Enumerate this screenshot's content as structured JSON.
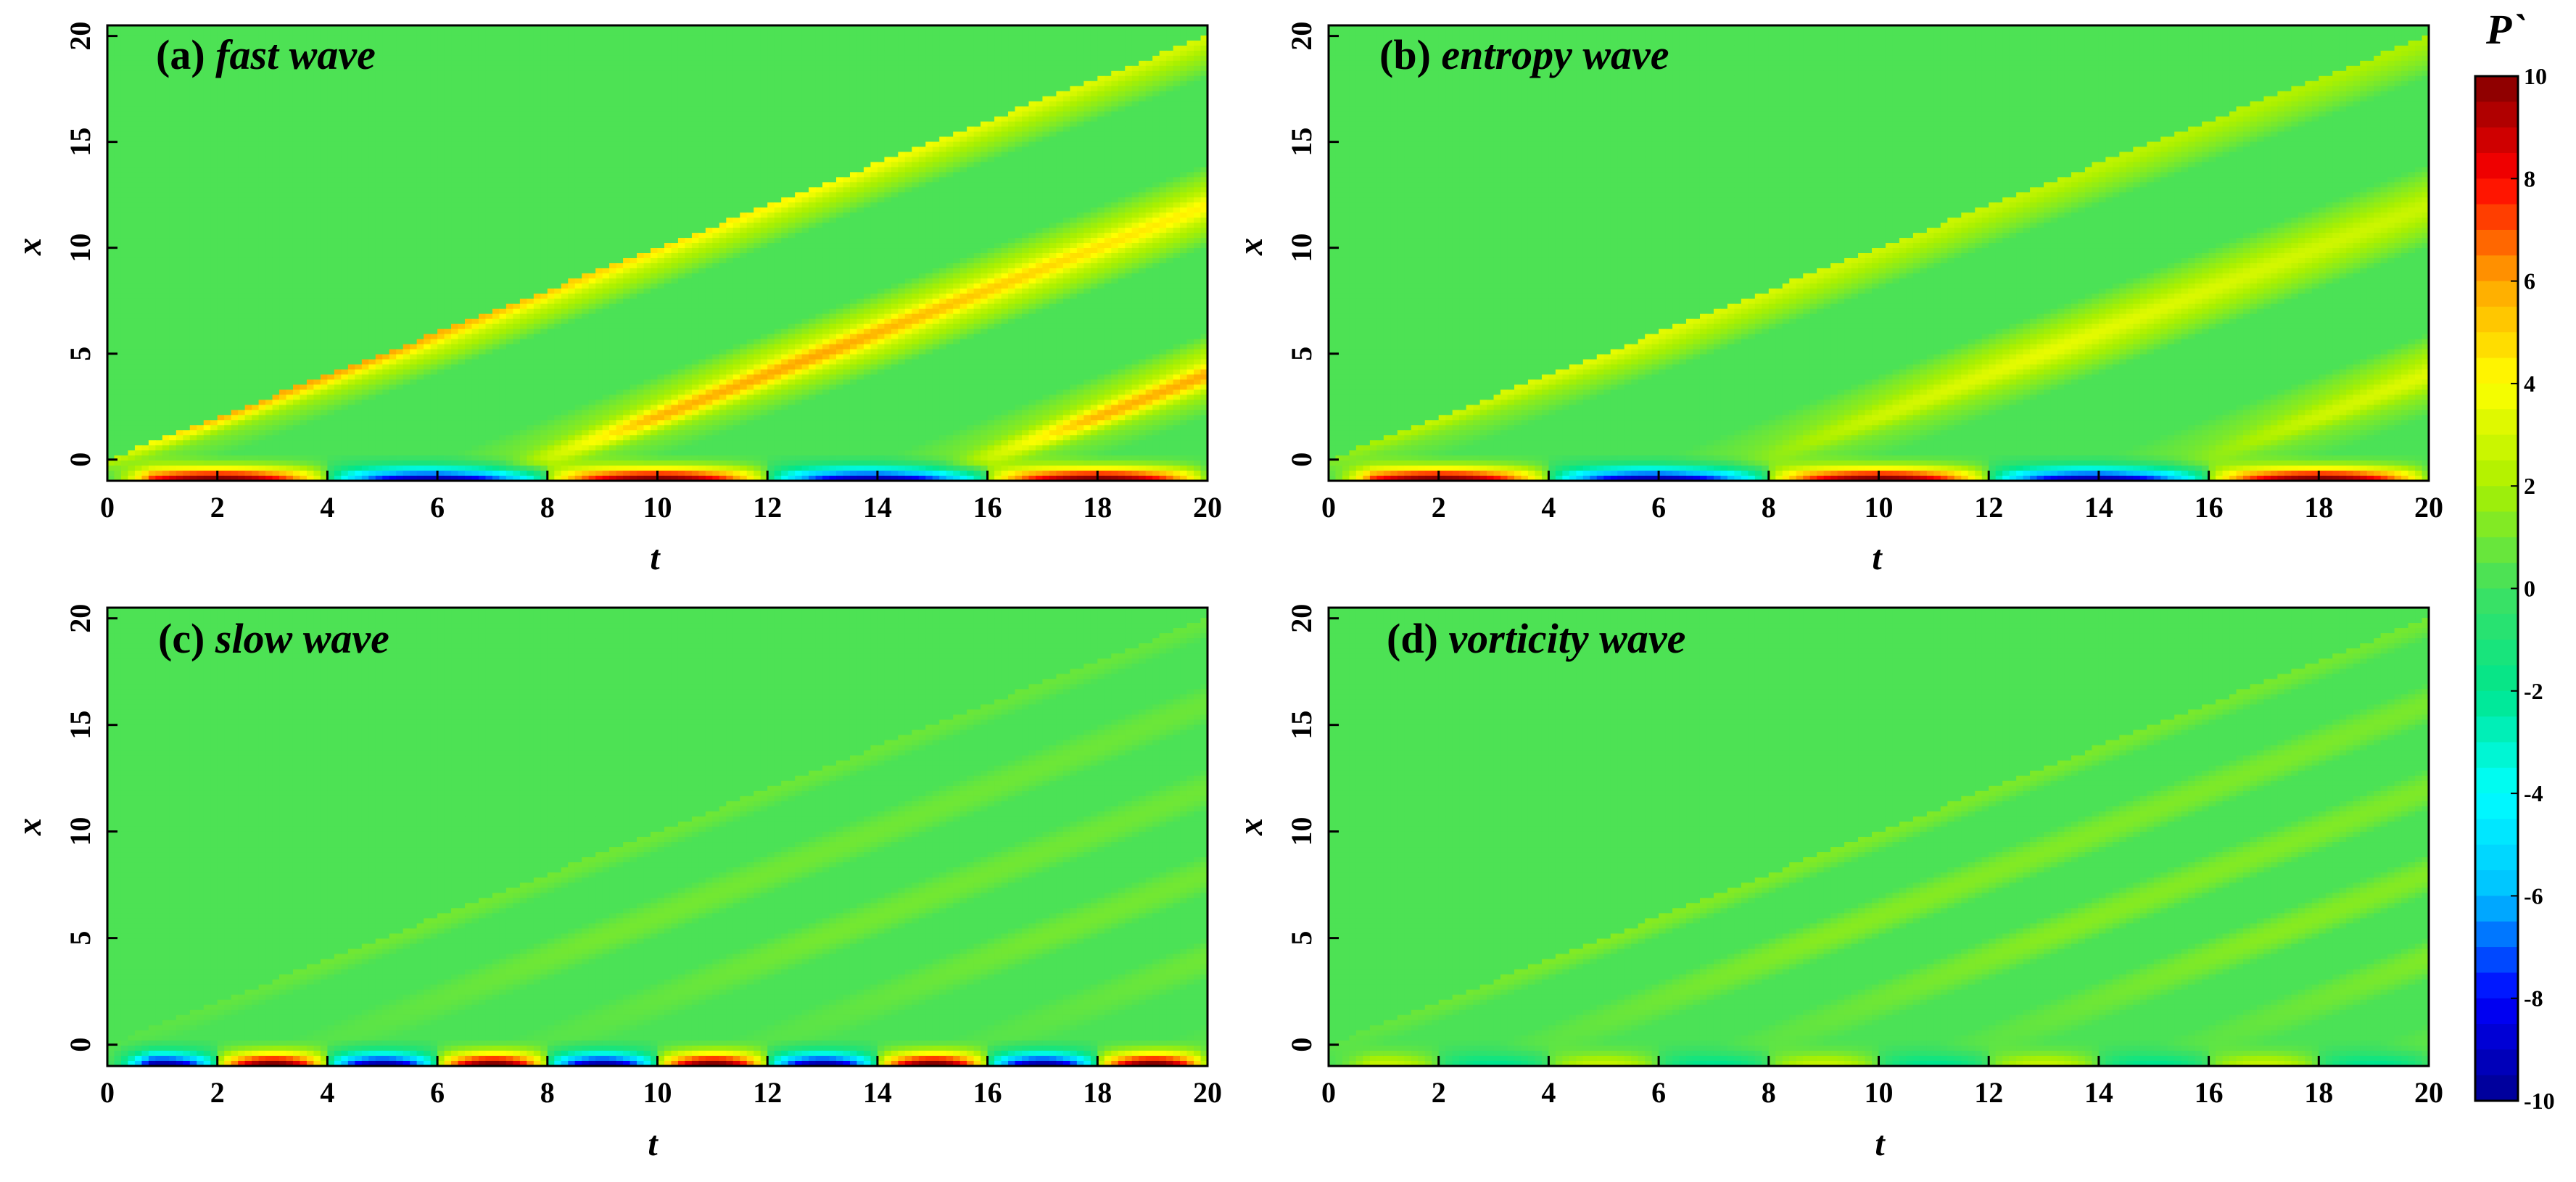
{
  "chart_data": [
    {
      "type": "heatmap",
      "id": "a",
      "label_prefix": "(a)",
      "title": "fast wave",
      "xlabel": "t",
      "ylabel": "x",
      "xlim": [
        0,
        20
      ],
      "ylim": [
        -1,
        20.5
      ],
      "xticks": [
        "0",
        "2",
        "4",
        "6",
        "8",
        "10",
        "12",
        "14",
        "16",
        "18",
        "20"
      ],
      "yticks": [
        "0",
        "5",
        "10",
        "15",
        "20"
      ],
      "boundary_amplitude": 10,
      "boundary_phase": 1,
      "boundary_period": 8,
      "wave_speed": 1.0,
      "band_amplitude": 3.2,
      "band_growth": 0.9,
      "crest_intensity": 4.5
    },
    {
      "type": "heatmap",
      "id": "b",
      "label_prefix": "(b)",
      "title": "entropy wave",
      "xlabel": "t",
      "ylabel": "x",
      "xlim": [
        0,
        20
      ],
      "ylim": [
        -1,
        20.5
      ],
      "xticks": [
        "0",
        "2",
        "4",
        "6",
        "8",
        "10",
        "12",
        "14",
        "16",
        "18",
        "20"
      ],
      "yticks": [
        "0",
        "5",
        "10",
        "15",
        "20"
      ],
      "boundary_amplitude": 10,
      "boundary_phase": 1,
      "boundary_period": 8,
      "wave_speed": 1.0,
      "band_amplitude": 2.6,
      "band_growth": 0.9,
      "crest_intensity": 1.5
    },
    {
      "type": "heatmap",
      "id": "c",
      "label_prefix": "(c)",
      "title": "slow wave",
      "xlabel": "t",
      "ylabel": "x",
      "xlim": [
        0,
        20
      ],
      "ylim": [
        -1,
        20.5
      ],
      "xticks": [
        "0",
        "2",
        "4",
        "6",
        "8",
        "10",
        "12",
        "14",
        "16",
        "18",
        "20"
      ],
      "yticks": [
        "0",
        "5",
        "10",
        "15",
        "20"
      ],
      "boundary_amplitude": 10,
      "boundary_phase": -1,
      "boundary_period": 4,
      "wave_speed": 1.0,
      "band_amplitude": 0.9,
      "band_growth": 0.9,
      "crest_intensity": 0.0
    },
    {
      "type": "heatmap",
      "id": "d",
      "label_prefix": "(d)",
      "title": "vorticity wave",
      "xlabel": "t",
      "ylabel": "x",
      "xlim": [
        0,
        20
      ],
      "ylim": [
        -1,
        20.5
      ],
      "xticks": [
        "0",
        "2",
        "4",
        "6",
        "8",
        "10",
        "12",
        "14",
        "16",
        "18",
        "20"
      ],
      "yticks": [
        "0",
        "5",
        "10",
        "15",
        "20"
      ],
      "boundary_amplitude": 2.5,
      "boundary_phase": 1,
      "boundary_period": 4,
      "wave_speed": 1.0,
      "band_amplitude": 1.3,
      "band_growth": 0.9,
      "crest_intensity": 0.0
    }
  ],
  "colorbar": {
    "title": "P`",
    "min": -10,
    "max": 10,
    "ticks": [
      "10",
      "8",
      "6",
      "4",
      "2",
      "0",
      "-2",
      "-4",
      "-6",
      "-8",
      "-10"
    ],
    "colors": [
      "#00008f",
      "#0000ff",
      "#00bfff",
      "#00ffff",
      "#00e68c",
      "#40e060",
      "#aaf000",
      "#ffff00",
      "#ffa500",
      "#ff0000",
      "#800000"
    ]
  }
}
